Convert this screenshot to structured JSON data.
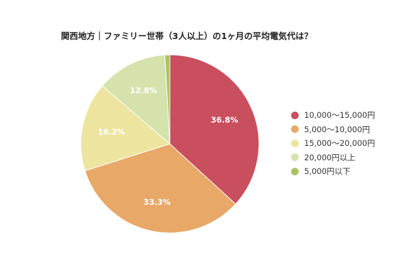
{
  "chart_data": {
    "type": "pie",
    "title": "関西地方｜ファミリー世帯（3人以上）の1ヶ月の平均電気代は？",
    "categories": [
      "10,000～15,000円",
      "5,000～10,000円",
      "15,000～20,000円",
      "20,000円以上",
      "5,000円以下"
    ],
    "values": [
      36.8,
      33.3,
      16.2,
      12.8,
      0.9
    ],
    "data_labels": [
      "36.8%",
      "33.3%",
      "16.2%",
      "12.8%",
      ""
    ],
    "colors": [
      "#c94e5e",
      "#e8a868",
      "#ede59f",
      "#d5e2ac",
      "#a9c364"
    ],
    "start_angle_deg": 0,
    "direction": "clockwise",
    "legend_position": "right"
  }
}
